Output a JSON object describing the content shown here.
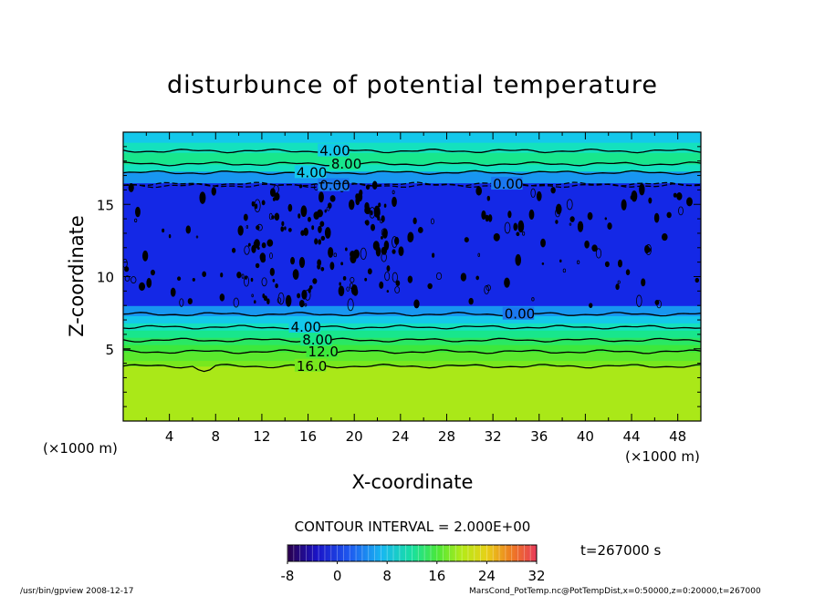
{
  "chart_data": {
    "type": "heatmap",
    "title": "disturbunce of potential temperature",
    "xlabel": "X-coordinate",
    "ylabel": "Z-coordinate",
    "x_unit_label_left": "(×1000 m)",
    "x_unit_label_right": "(×1000 m)",
    "xlim": [
      0,
      50
    ],
    "ylim": [
      0,
      20
    ],
    "x_ticks": [
      4,
      8,
      12,
      16,
      20,
      24,
      28,
      32,
      36,
      40,
      44,
      48
    ],
    "x_tick_labels": [
      "4",
      "8",
      "12",
      "16",
      "20",
      "24",
      "28",
      "32",
      "36",
      "40",
      "44",
      "48"
    ],
    "y_ticks": [
      5,
      10,
      15
    ],
    "y_tick_labels": [
      "5",
      "10",
      "15"
    ],
    "bands": [
      {
        "z0": 0,
        "z1": 3.8,
        "value": 20
      },
      {
        "z0": 3.8,
        "z1": 4.2,
        "value": 16
      },
      {
        "z0": 4.2,
        "z1": 4.8,
        "value": 14
      },
      {
        "z0": 4.8,
        "z1": 5.3,
        "value": 12
      },
      {
        "z0": 5.3,
        "z1": 5.8,
        "value": 10
      },
      {
        "z0": 5.8,
        "z1": 6.3,
        "value": 8
      },
      {
        "z0": 6.3,
        "z1": 6.8,
        "value": 6
      },
      {
        "z0": 6.8,
        "z1": 7.3,
        "value": 4
      },
      {
        "z0": 7.3,
        "z1": 8.0,
        "value": 2
      },
      {
        "z0": 8.0,
        "z1": 16.5,
        "value": -2
      },
      {
        "z0": 16.5,
        "z1": 17.3,
        "value": 2
      },
      {
        "z0": 17.3,
        "z1": 17.8,
        "value": 6
      },
      {
        "z0": 17.8,
        "z1": 18.6,
        "value": 8
      },
      {
        "z0": 18.6,
        "z1": 19.3,
        "value": 6
      },
      {
        "z0": 19.3,
        "z1": 20,
        "value": 4
      }
    ],
    "contours": [
      {
        "z": 3.8,
        "label": "16.0",
        "x_label": 15
      },
      {
        "z": 4.8,
        "label": "12.0",
        "x_label": 16
      },
      {
        "z": 5.6,
        "label": "8.00",
        "x_label": 15.5
      },
      {
        "z": 6.5,
        "label": "4.00",
        "x_label": 14.5
      },
      {
        "z": 7.4,
        "label": "0.00",
        "x_label": 33
      },
      {
        "z": 16.3,
        "label": "0.00",
        "x_label": 17
      },
      {
        "z": 16.4,
        "label": "0.00",
        "x_label": 32
      },
      {
        "z": 17.2,
        "label": "4.00",
        "x_label": 15
      },
      {
        "z": 17.8,
        "label": "8.00",
        "x_label": 18
      },
      {
        "z": 18.7,
        "label": "4.00",
        "x_label": 17
      }
    ],
    "colorbar": {
      "min": -8,
      "max": 32,
      "ticks": [
        -8,
        0,
        8,
        16,
        24,
        32
      ],
      "tick_labels": [
        "-8",
        "0",
        "8",
        "16",
        "24",
        "32"
      ]
    },
    "contour_interval_text": "CONTOUR INTERVAL = 2.000E+00",
    "time_text": "t=267000 s"
  },
  "footer": {
    "left": "/usr/bin/gpview   2008-12-17",
    "right": "MarsCond_PotTemp.nc@PotTempDist,x=0:50000,z=0:20000,t=267000"
  },
  "colors": {
    "frame": "#000000",
    "background": "#ffffff"
  }
}
